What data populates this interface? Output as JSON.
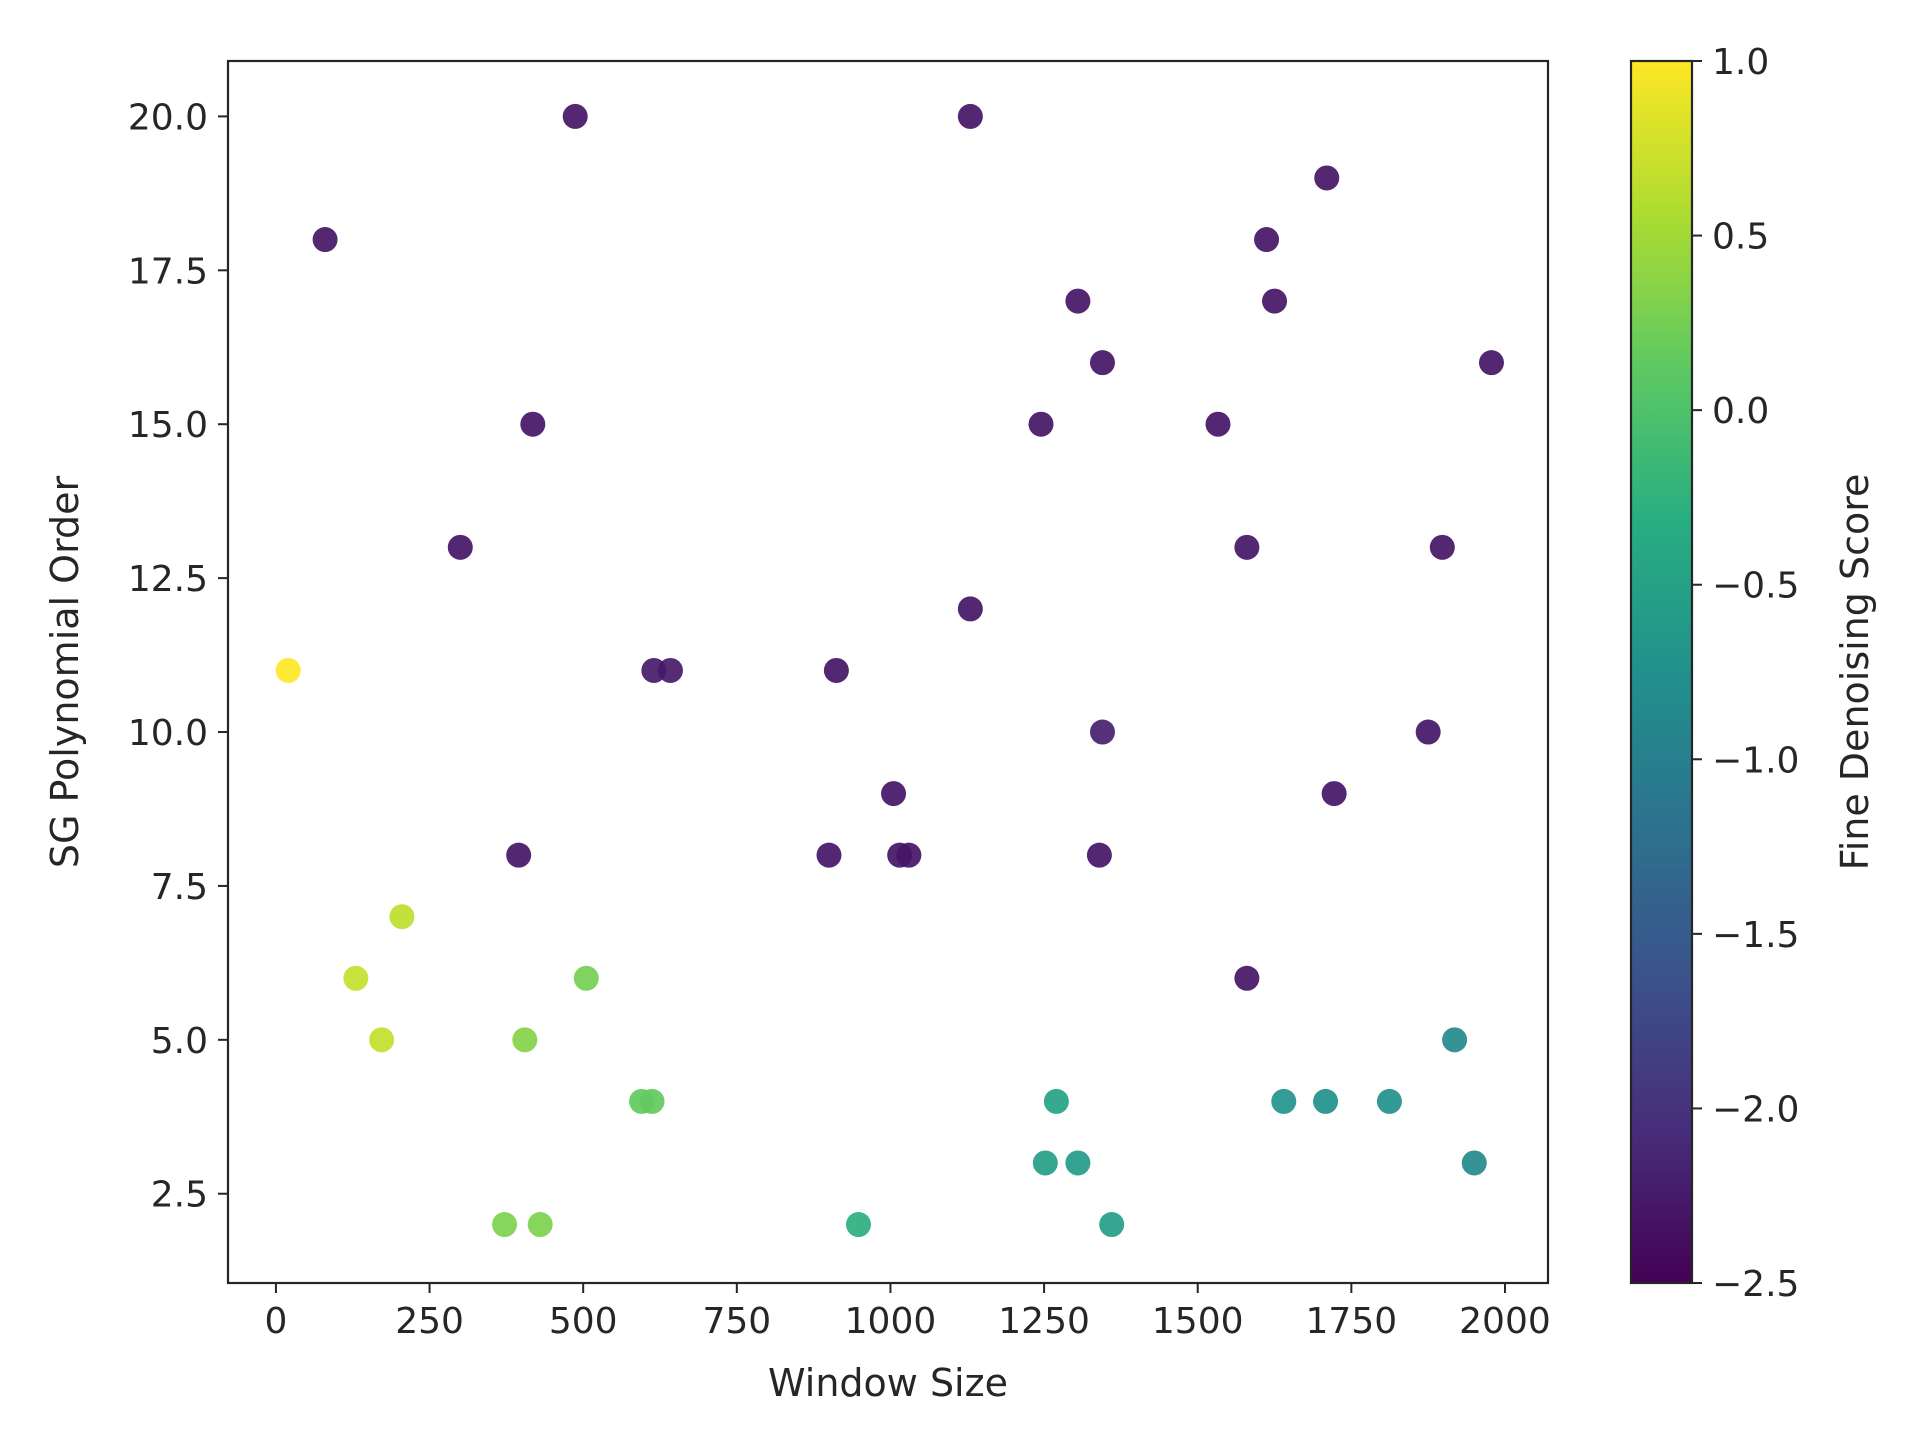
{
  "chart_data": {
    "type": "scatter",
    "title": "",
    "xlabel": "Window Size",
    "ylabel": "SG Polynomial Order",
    "colorbar_label": "Fine Denoising Score",
    "colormap": "viridis",
    "xlim": [
      -78,
      2070
    ],
    "ylim": [
      1.05,
      20.9
    ],
    "clim": [
      -2.5,
      1.0
    ],
    "x_ticks": [
      0,
      250,
      500,
      750,
      1000,
      1250,
      1500,
      1750,
      2000
    ],
    "x_tick_labels": [
      "0",
      "250",
      "500",
      "750",
      "1000",
      "1250",
      "1500",
      "1750",
      "2000"
    ],
    "y_ticks": [
      2.5,
      5.0,
      7.5,
      10.0,
      12.5,
      15.0,
      17.5,
      20.0
    ],
    "y_tick_labels": [
      "2.5",
      "5.0",
      "7.5",
      "10.0",
      "12.5",
      "15.0",
      "17.5",
      "20.0"
    ],
    "c_ticks": [
      1.0,
      0.5,
      0.0,
      -0.5,
      -1.0,
      -1.5,
      -2.0,
      -2.5
    ],
    "c_tick_labels": [
      "1.0",
      "0.5",
      "0.0",
      "−0.5",
      "−1.0",
      "−1.5",
      "−2.0",
      "−2.5"
    ],
    "grid": false,
    "points": [
      {
        "x": 20,
        "y": 11,
        "c": 1.0
      },
      {
        "x": 80,
        "y": 18,
        "c": -2.3
      },
      {
        "x": 130,
        "y": 6,
        "c": 0.7
      },
      {
        "x": 172,
        "y": 5,
        "c": 0.68
      },
      {
        "x": 205,
        "y": 7,
        "c": 0.65
      },
      {
        "x": 300,
        "y": 13,
        "c": -2.3
      },
      {
        "x": 372,
        "y": 2,
        "c": 0.3
      },
      {
        "x": 395,
        "y": 8,
        "c": -2.3
      },
      {
        "x": 405,
        "y": 5,
        "c": 0.35
      },
      {
        "x": 418,
        "y": 15,
        "c": -2.3
      },
      {
        "x": 430,
        "y": 2,
        "c": 0.3
      },
      {
        "x": 487,
        "y": 20,
        "c": -2.3
      },
      {
        "x": 505,
        "y": 6,
        "c": 0.25
      },
      {
        "x": 595,
        "y": 4,
        "c": 0.15
      },
      {
        "x": 612,
        "y": 4,
        "c": 0.15
      },
      {
        "x": 615,
        "y": 11,
        "c": -2.25
      },
      {
        "x": 642,
        "y": 11,
        "c": -2.25
      },
      {
        "x": 900,
        "y": 8,
        "c": -2.3
      },
      {
        "x": 912,
        "y": 11,
        "c": -2.3
      },
      {
        "x": 948,
        "y": 2,
        "c": -0.3
      },
      {
        "x": 1005,
        "y": 9,
        "c": -2.3
      },
      {
        "x": 1015,
        "y": 8,
        "c": -2.3
      },
      {
        "x": 1030,
        "y": 8,
        "c": -2.3
      },
      {
        "x": 1130,
        "y": 20,
        "c": -2.3
      },
      {
        "x": 1130,
        "y": 12,
        "c": -2.3
      },
      {
        "x": 1245,
        "y": 15,
        "c": -2.3
      },
      {
        "x": 1252,
        "y": 3,
        "c": -0.55
      },
      {
        "x": 1270,
        "y": 4,
        "c": -0.5
      },
      {
        "x": 1305,
        "y": 3,
        "c": -0.6
      },
      {
        "x": 1305,
        "y": 17,
        "c": -2.3
      },
      {
        "x": 1340,
        "y": 8,
        "c": -2.3
      },
      {
        "x": 1345,
        "y": 16,
        "c": -2.3
      },
      {
        "x": 1345,
        "y": 10,
        "c": -2.2
      },
      {
        "x": 1360,
        "y": 2,
        "c": -0.55
      },
      {
        "x": 1533,
        "y": 15,
        "c": -2.3
      },
      {
        "x": 1580,
        "y": 13,
        "c": -2.3
      },
      {
        "x": 1580,
        "y": 6,
        "c": -2.3
      },
      {
        "x": 1612,
        "y": 18,
        "c": -2.3
      },
      {
        "x": 1625,
        "y": 17,
        "c": -2.3
      },
      {
        "x": 1640,
        "y": 4,
        "c": -0.7
      },
      {
        "x": 1708,
        "y": 4,
        "c": -0.75
      },
      {
        "x": 1710,
        "y": 19,
        "c": -2.3
      },
      {
        "x": 1722,
        "y": 9,
        "c": -2.3
      },
      {
        "x": 1812,
        "y": 4,
        "c": -0.75
      },
      {
        "x": 1875,
        "y": 10,
        "c": -2.3
      },
      {
        "x": 1898,
        "y": 13,
        "c": -2.3
      },
      {
        "x": 1918,
        "y": 5,
        "c": -0.85
      },
      {
        "x": 1950,
        "y": 3,
        "c": -0.85
      },
      {
        "x": 1978,
        "y": 16,
        "c": -2.3
      }
    ]
  }
}
